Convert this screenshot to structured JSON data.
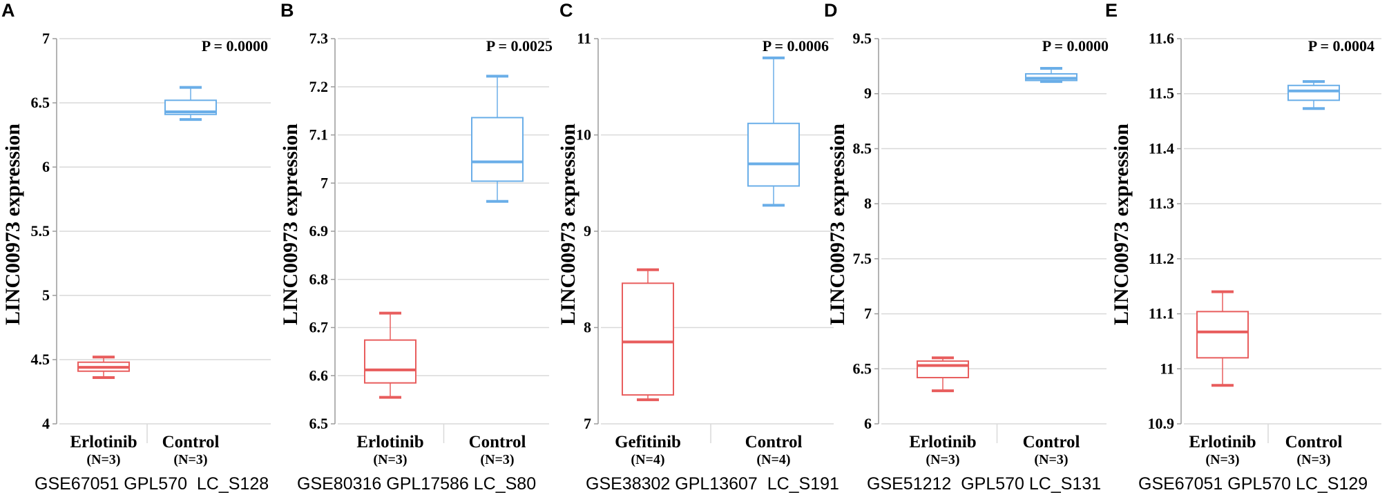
{
  "chart_data": [
    {
      "type": "box",
      "panel": "A",
      "ylabel": "LINC00973 expression",
      "ylim": [
        4,
        7
      ],
      "yticks": [
        "4",
        "4.5",
        "5",
        "5.5",
        "6",
        "6.5",
        "7"
      ],
      "p_value": "P = 0.0000",
      "dataset": "GSE67051 GPL570  LC_S128",
      "groups": [
        {
          "name": "Erlotinib",
          "n": "(N=3)",
          "color": "#e85d5d",
          "min": 4.36,
          "q1": 4.41,
          "median": 4.44,
          "q3": 4.48,
          "max": 4.52
        },
        {
          "name": "Control",
          "n": "(N=3)",
          "color": "#6aaee8",
          "min": 6.37,
          "q1": 6.41,
          "median": 6.43,
          "q3": 6.52,
          "max": 6.62
        }
      ]
    },
    {
      "type": "box",
      "panel": "B",
      "ylabel": "LINC00973 expression",
      "ylim": [
        6.5,
        7.3
      ],
      "yticks": [
        "6.5",
        "6.6",
        "6.7",
        "6.8",
        "6.9",
        "7",
        "7.1",
        "7.2",
        "7.3"
      ],
      "p_value": "P = 0.0025",
      "dataset": "GSE80316 GPL17586 LC_S80",
      "groups": [
        {
          "name": "Erlotinib",
          "n": "(N=3)",
          "color": "#e85d5d",
          "min": 6.555,
          "q1": 6.585,
          "median": 6.612,
          "q3": 6.674,
          "max": 6.73
        },
        {
          "name": "Control",
          "n": "(N=3)",
          "color": "#6aaee8",
          "min": 6.962,
          "q1": 7.004,
          "median": 7.044,
          "q3": 7.136,
          "max": 7.222
        }
      ]
    },
    {
      "type": "box",
      "panel": "C",
      "ylabel": "LINC00973 expression",
      "ylim": [
        7,
        11
      ],
      "yticks": [
        "7",
        "8",
        "9",
        "10",
        "11"
      ],
      "p_value": "P = 0.0006",
      "dataset": "GSE38302 GPL13607  LC_S191",
      "groups": [
        {
          "name": "Gefitinib",
          "n": "(N=4)",
          "color": "#e85d5d",
          "min": 7.25,
          "q1": 7.3,
          "median": 7.85,
          "q3": 8.46,
          "max": 8.6
        },
        {
          "name": "Control",
          "n": "(N=4)",
          "color": "#6aaee8",
          "min": 9.27,
          "q1": 9.47,
          "median": 9.7,
          "q3": 10.12,
          "max": 10.8
        }
      ]
    },
    {
      "type": "box",
      "panel": "D",
      "ylabel": "LINC00973 expression",
      "ylim": [
        6,
        9.5
      ],
      "yticks": [
        "6",
        "6.5",
        "7",
        "7.5",
        "8",
        "8.5",
        "9",
        "9.5"
      ],
      "p_value": "P = 0.0000",
      "dataset": "GSE51212  GPL570 LC_S131",
      "groups": [
        {
          "name": "Erlotinib",
          "n": "(N=3)",
          "color": "#e85d5d",
          "min": 6.3,
          "q1": 6.42,
          "median": 6.53,
          "q3": 6.57,
          "max": 6.6
        },
        {
          "name": "Control",
          "n": "(N=3)",
          "color": "#6aaee8",
          "min": 9.11,
          "q1": 9.12,
          "median": 9.14,
          "q3": 9.18,
          "max": 9.23
        }
      ]
    },
    {
      "type": "box",
      "panel": "E",
      "ylabel": "LINC00973 expression",
      "ylim": [
        10.9,
        11.6
      ],
      "yticks": [
        "10.9",
        "11",
        "11.1",
        "11.2",
        "11.3",
        "11.4",
        "11.5",
        "11.6"
      ],
      "p_value": "P = 0.0004",
      "dataset": "GSE67051 GPL570 LC_S129",
      "groups": [
        {
          "name": "Erlotinib",
          "n": "(N=3)",
          "color": "#e85d5d",
          "min": 10.97,
          "q1": 11.02,
          "median": 11.067,
          "q3": 11.104,
          "max": 11.14
        },
        {
          "name": "Control",
          "n": "(N=3)",
          "color": "#6aaee8",
          "min": 11.473,
          "q1": 11.488,
          "median": 11.505,
          "q3": 11.515,
          "max": 11.522
        }
      ]
    }
  ]
}
